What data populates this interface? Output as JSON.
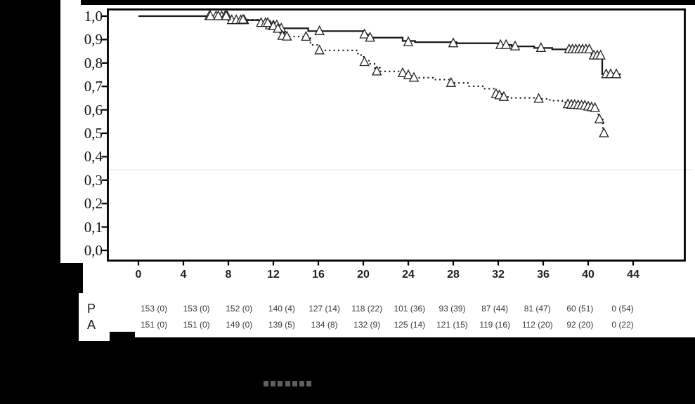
{
  "figure": {
    "description": "Kaplan-Meier survival curves (solid vs dotted) with censor triangles and number-at-risk table on black masked background",
    "background": "#000000",
    "panel_color": "#ffffff"
  },
  "y_axis": {
    "ticks": [
      {
        "v": 1.0,
        "label": "1,0"
      },
      {
        "v": 0.9,
        "label": "0,9"
      },
      {
        "v": 0.8,
        "label": "0,8"
      },
      {
        "v": 0.7,
        "label": "0,7"
      },
      {
        "v": 0.6,
        "label": "0,6"
      },
      {
        "v": 0.5,
        "label": "0,5"
      },
      {
        "v": 0.4,
        "label": "0,4"
      },
      {
        "v": 0.3,
        "label": "0,3"
      },
      {
        "v": 0.2,
        "label": "0,2"
      },
      {
        "v": 0.1,
        "label": "0,1"
      },
      {
        "v": 0.0,
        "label": "0,0"
      }
    ]
  },
  "x_axis": {
    "ticks": [
      {
        "v": 0,
        "label": "0"
      },
      {
        "v": 4,
        "label": "4"
      },
      {
        "v": 8,
        "label": "8"
      },
      {
        "v": 12,
        "label": "12"
      },
      {
        "v": 16,
        "label": "16"
      },
      {
        "v": 20,
        "label": "20"
      },
      {
        "v": 24,
        "label": "24"
      },
      {
        "v": 28,
        "label": "28"
      },
      {
        "v": 32,
        "label": "32"
      },
      {
        "v": 36,
        "label": "36"
      },
      {
        "v": 40,
        "label": "40"
      },
      {
        "v": 44,
        "label": "44"
      }
    ]
  },
  "risk_table": {
    "row_labels": [
      "P",
      "A"
    ]
  },
  "legend": {
    "dotted_sample_marks": 7,
    "mark_color": "#5f5f5f"
  },
  "colors": {
    "curve": "#1a1a1a",
    "censor_stroke": "#222222",
    "faint_line": "#f0f0f0"
  },
  "chart_data": {
    "type": "line",
    "subtype": "kaplan_meier_step",
    "title": "",
    "xlabel": "",
    "ylabel": "",
    "xlim": [
      -2.7,
      48.6
    ],
    "ylim": [
      -0.045,
      1.03
    ],
    "x_ticks": [
      0,
      4,
      8,
      12,
      16,
      20,
      24,
      28,
      32,
      36,
      40,
      44
    ],
    "y_ticks": [
      0.0,
      0.1,
      0.2,
      0.3,
      0.4,
      0.5,
      0.6,
      0.7,
      0.8,
      0.9,
      1.0
    ],
    "y_tick_labels": [
      "0,0",
      "0,1",
      "0,2",
      "0,3",
      "0,4",
      "0,5",
      "0,6",
      "0,7",
      "0,8",
      "0,9",
      "1,0"
    ],
    "grid": false,
    "series": [
      {
        "name": "P",
        "line_style": "solid",
        "marker": "open_triangle_censor",
        "end_t": 42.9,
        "step_points": [
          [
            0,
            1.0
          ],
          [
            8.0,
            0.983
          ],
          [
            10.8,
            0.971
          ],
          [
            11.6,
            0.961
          ],
          [
            12.5,
            0.948
          ],
          [
            15.1,
            0.936
          ],
          [
            20.0,
            0.922
          ],
          [
            20.4,
            0.908
          ],
          [
            23.5,
            0.894
          ],
          [
            24.6,
            0.889
          ],
          [
            28.3,
            0.884
          ],
          [
            32.0,
            0.877
          ],
          [
            33.2,
            0.871
          ],
          [
            35.2,
            0.864
          ],
          [
            36.8,
            0.858
          ],
          [
            40.3,
            0.832
          ],
          [
            41.25,
            0.752
          ]
        ],
        "censor_marks": [
          [
            6.3,
            1.0
          ],
          [
            6.9,
            1.0
          ],
          [
            7.4,
            1.0
          ],
          [
            7.7,
            1.0
          ],
          [
            7.9,
            1.0
          ],
          [
            8.3,
            0.983
          ],
          [
            8.7,
            0.983
          ],
          [
            9.1,
            0.983
          ],
          [
            9.4,
            0.983
          ],
          [
            10.9,
            0.971
          ],
          [
            11.3,
            0.971
          ],
          [
            11.7,
            0.961
          ],
          [
            12.0,
            0.961
          ],
          [
            12.3,
            0.961
          ],
          [
            12.7,
            0.948
          ],
          [
            16.1,
            0.936
          ],
          [
            20.1,
            0.922
          ],
          [
            20.6,
            0.908
          ],
          [
            24.0,
            0.889
          ],
          [
            28.0,
            0.884
          ],
          [
            32.2,
            0.877
          ],
          [
            32.7,
            0.877
          ],
          [
            33.5,
            0.871
          ],
          [
            35.8,
            0.864
          ],
          [
            38.3,
            0.858
          ],
          [
            38.6,
            0.858
          ],
          [
            38.9,
            0.858
          ],
          [
            39.2,
            0.858
          ],
          [
            39.5,
            0.858
          ],
          [
            39.8,
            0.858
          ],
          [
            40.1,
            0.858
          ],
          [
            40.5,
            0.832
          ],
          [
            40.8,
            0.832
          ],
          [
            41.1,
            0.832
          ],
          [
            41.6,
            0.752
          ],
          [
            42.0,
            0.752
          ],
          [
            42.5,
            0.752
          ]
        ]
      },
      {
        "name": "A",
        "line_style": "dotted",
        "marker": "open_triangle_censor",
        "end_t": 41.7,
        "step_points": [
          [
            0,
            1.0
          ],
          [
            6.5,
            0.993
          ],
          [
            9.0,
            0.985
          ],
          [
            11.3,
            0.971
          ],
          [
            11.8,
            0.957
          ],
          [
            12.2,
            0.943
          ],
          [
            12.6,
            0.928
          ],
          [
            13.0,
            0.913
          ],
          [
            15.3,
            0.877
          ],
          [
            16.0,
            0.854
          ],
          [
            19.4,
            0.84
          ],
          [
            19.8,
            0.826
          ],
          [
            20.1,
            0.81
          ],
          [
            20.5,
            0.796
          ],
          [
            21.0,
            0.779
          ],
          [
            21.5,
            0.764
          ],
          [
            23.6,
            0.751
          ],
          [
            24.1,
            0.744
          ],
          [
            24.5,
            0.737
          ],
          [
            26.2,
            0.729
          ],
          [
            27.7,
            0.715
          ],
          [
            29.3,
            0.701
          ],
          [
            30.8,
            0.69
          ],
          [
            31.7,
            0.668
          ],
          [
            32.4,
            0.655
          ],
          [
            33.1,
            0.651
          ],
          [
            35.5,
            0.647
          ],
          [
            36.6,
            0.639
          ],
          [
            37.7,
            0.631
          ],
          [
            38.4,
            0.623
          ],
          [
            39.7,
            0.615
          ],
          [
            40.4,
            0.606
          ],
          [
            40.9,
            0.56
          ],
          [
            41.3,
            0.5
          ]
        ],
        "censor_marks": [
          [
            6.4,
            1.0
          ],
          [
            7.1,
            1.0
          ],
          [
            7.8,
            1.0
          ],
          [
            9.3,
            0.985
          ],
          [
            11.5,
            0.971
          ],
          [
            12.0,
            0.957
          ],
          [
            12.4,
            0.946
          ],
          [
            12.8,
            0.916
          ],
          [
            13.2,
            0.913
          ],
          [
            14.9,
            0.912
          ],
          [
            16.1,
            0.854
          ],
          [
            20.1,
            0.804
          ],
          [
            21.2,
            0.764
          ],
          [
            23.5,
            0.757
          ],
          [
            24.0,
            0.748
          ],
          [
            24.5,
            0.737
          ],
          [
            27.8,
            0.715
          ],
          [
            31.8,
            0.668
          ],
          [
            32.1,
            0.662
          ],
          [
            32.5,
            0.655
          ],
          [
            35.6,
            0.647
          ],
          [
            38.2,
            0.624
          ],
          [
            38.5,
            0.622
          ],
          [
            38.8,
            0.621
          ],
          [
            39.1,
            0.62
          ],
          [
            39.4,
            0.619
          ],
          [
            39.7,
            0.618
          ],
          [
            40.0,
            0.614
          ],
          [
            40.3,
            0.611
          ],
          [
            40.6,
            0.608
          ],
          [
            41.0,
            0.56
          ],
          [
            41.4,
            0.5
          ]
        ]
      }
    ],
    "number_at_risk": {
      "times": [
        0,
        4,
        8,
        12,
        16,
        20,
        24,
        28,
        32,
        36,
        40,
        44
      ],
      "rows": [
        {
          "label": "P",
          "values": [
            "153 (0)",
            "153 (0)",
            "152 (0)",
            "140 (4)",
            "127 (14)",
            "118 (22)",
            "101 (36)",
            "93 (39)",
            "87 (44)",
            "81 (47)",
            "60 (51)",
            "0 (54)"
          ]
        },
        {
          "label": "A",
          "values": [
            "151 (0)",
            "151 (0)",
            "149 (0)",
            "139 (5)",
            "134 (8)",
            "132 (9)",
            "125 (14)",
            "121 (15)",
            "119 (16)",
            "112 (20)",
            "92 (20)",
            "0 (22)"
          ]
        }
      ]
    }
  }
}
